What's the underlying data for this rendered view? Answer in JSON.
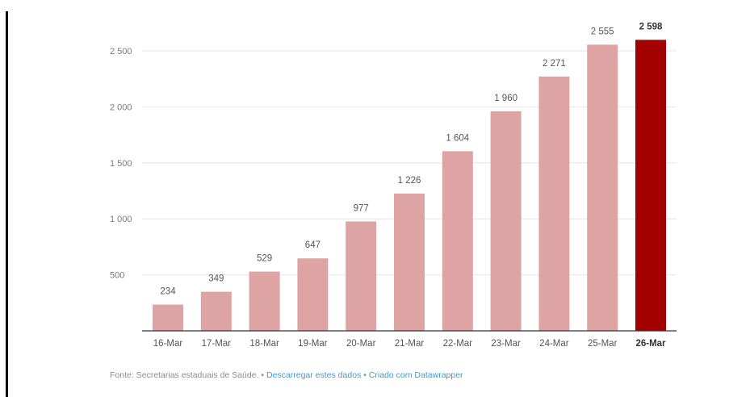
{
  "chart_data": {
    "type": "bar",
    "categories": [
      "16-Mar",
      "17-Mar",
      "18-Mar",
      "19-Mar",
      "20-Mar",
      "21-Mar",
      "22-Mar",
      "23-Mar",
      "24-Mar",
      "25-Mar",
      "26-Mar"
    ],
    "values": [
      234,
      349,
      529,
      647,
      977,
      1226,
      1604,
      1960,
      2271,
      2555,
      2598
    ],
    "value_labels": [
      "234",
      "349",
      "529",
      "647",
      "977",
      "1 226",
      "1 604",
      "1 960",
      "2 271",
      "2 555",
      "2 598"
    ],
    "highlight_index": 10,
    "ylim": [
      0,
      2700
    ],
    "yticks": [
      500,
      1000,
      1500,
      2000,
      2500
    ],
    "ytick_labels": [
      "500",
      "1 000",
      "1 500",
      "2 000",
      "2 500"
    ],
    "grid": true,
    "colors": {
      "bar": "#dea4a4",
      "highlight": "#a30000",
      "grid": "#e6e6e6",
      "axis": "#333333",
      "label": "#555555",
      "tick": "#7a7a7a"
    }
  },
  "footer": {
    "source": "Fonte: Secretarias estaduais de Saúde.",
    "separator": "•",
    "download_link": "Descarregar estes dados",
    "created_link": "Criado com Datawrapper"
  }
}
